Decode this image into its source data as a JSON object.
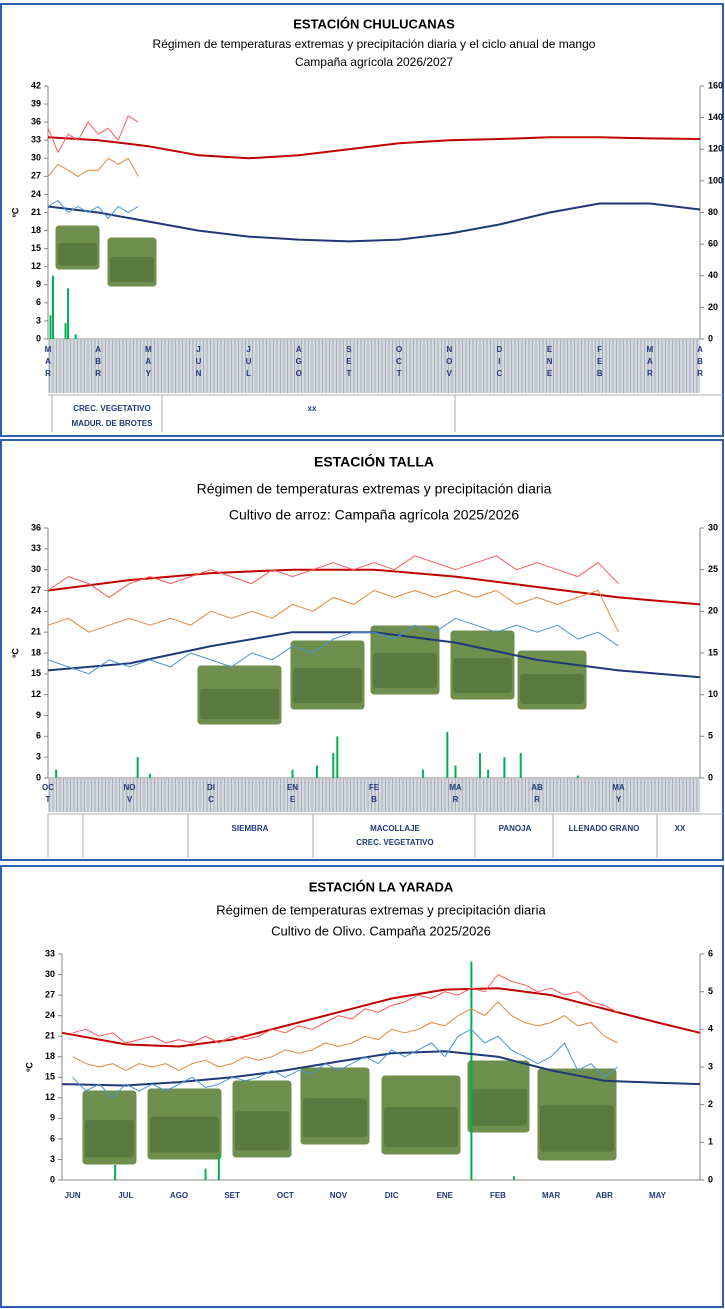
{
  "chart_data": [
    {
      "type": "line",
      "title": "ESTACIÓN CHULUCANAS",
      "subtitle": [
        "Régimen de temperaturas extremas y precipitación diaria y el ciclo anual de mango",
        "Campaña agrícola 2026/2027"
      ],
      "ylabel": "ºC",
      "categories": [
        "MAR",
        "ABR",
        "MAY",
        "JUN",
        "JUL",
        "AGO",
        "SET",
        "OCT",
        "NOV",
        "DIC",
        "ENE",
        "FEB",
        "MAR",
        "ABR"
      ],
      "xlim": [
        0,
        13
      ],
      "ylim": [
        0,
        42
      ],
      "yticks": [
        0,
        3,
        6,
        9,
        12,
        15,
        18,
        21,
        24,
        27,
        30,
        33,
        36,
        39,
        42
      ],
      "y2lim": [
        0,
        160
      ],
      "y2ticks": [
        0,
        20,
        40,
        60,
        80,
        100,
        120,
        140,
        160
      ],
      "phases": [
        "CREC. VEGETATIVO",
        "MADUR. DE BROTES",
        "xx"
      ],
      "series": [
        {
          "type": "line",
          "color": "#c00000",
          "width": 2,
          "x": [
            0,
            1,
            2,
            3,
            4,
            5,
            6,
            7,
            8,
            9,
            10,
            11,
            12,
            13
          ],
          "values": [
            33.5,
            33,
            32,
            30.5,
            30,
            30.5,
            31.5,
            32.5,
            33,
            33.2,
            33.5,
            33.5,
            33.3,
            33.2
          ]
        },
        {
          "type": "line",
          "color": "#1f3a78",
          "width": 2,
          "x": [
            0,
            1,
            2,
            3,
            4,
            5,
            6,
            7,
            8,
            9,
            10,
            11,
            12,
            13
          ],
          "values": [
            22,
            21,
            19.5,
            18,
            17,
            16.5,
            16.2,
            16.5,
            17.5,
            19,
            21,
            22.5,
            22.5,
            21.5
          ]
        },
        {
          "type": "line",
          "color": "#ff5a5a",
          "width": 1,
          "x": [
            0,
            0.2,
            0.4,
            0.6,
            0.8,
            1,
            1.2,
            1.4,
            1.6,
            1.8
          ],
          "values": [
            35,
            31,
            34,
            33,
            36,
            34,
            35,
            33,
            37,
            36
          ]
        },
        {
          "type": "line",
          "color": "#e08a3c",
          "width": 1,
          "x": [
            0,
            0.2,
            0.4,
            0.6,
            0.8,
            1,
            1.2,
            1.4,
            1.6,
            1.8
          ],
          "values": [
            27,
            29,
            28,
            27,
            28,
            28,
            30,
            29,
            30,
            27
          ]
        },
        {
          "type": "line",
          "color": "#4a95d8",
          "width": 1,
          "x": [
            0,
            0.2,
            0.4,
            0.6,
            0.8,
            1,
            1.2,
            1.4,
            1.6,
            1.8
          ],
          "values": [
            22,
            23,
            21,
            22,
            21,
            22,
            20,
            22,
            21,
            22
          ]
        },
        {
          "type": "bar",
          "axis": "y2",
          "color": "#00b050",
          "x": [
            0.05,
            0.1,
            0.35,
            0.4,
            0.55
          ],
          "values": [
            15,
            40,
            10,
            32,
            3
          ]
        }
      ]
    },
    {
      "type": "line",
      "title": "ESTACIÓN TALLA",
      "subtitle": [
        "Régimen de temperaturas extremas y precipitación diaria",
        "Cultivo de arroz: Campaña agrícola 2025/2026"
      ],
      "ylabel": "ºC",
      "categories": [
        "OCT",
        "NOV",
        "DIC",
        "ENE",
        "FEB",
        "MAR",
        "ABR",
        "MAY"
      ],
      "xlim": [
        0,
        8
      ],
      "ylim": [
        0,
        36
      ],
      "yticks": [
        0,
        3,
        6,
        9,
        12,
        15,
        18,
        21,
        24,
        27,
        30,
        33,
        36
      ],
      "y2lim": [
        0,
        30
      ],
      "y2ticks": [
        0,
        5,
        10,
        15,
        20,
        25,
        30
      ],
      "phases": [
        "SIEMBRA",
        "MACOLLAJE",
        "CREC. VEGETATIVO",
        "PANOJA",
        "LLENADO GRANO",
        "XX"
      ],
      "series": [
        {
          "type": "line",
          "color": "#c00000",
          "width": 2,
          "x": [
            0,
            1,
            2,
            3,
            4,
            5,
            6,
            7,
            8
          ],
          "values": [
            27,
            28.5,
            29.5,
            30,
            30,
            29,
            27.5,
            26,
            25
          ]
        },
        {
          "type": "line",
          "color": "#1f3a78",
          "width": 2,
          "x": [
            0,
            1,
            2,
            3,
            4,
            5,
            6,
            7,
            8
          ],
          "values": [
            15.5,
            16.5,
            19,
            21,
            21,
            19.5,
            17,
            15.5,
            14.5
          ]
        },
        {
          "type": "line",
          "color": "#ff5a5a",
          "width": 1,
          "x": [
            0,
            0.25,
            0.5,
            0.75,
            1,
            1.25,
            1.5,
            1.75,
            2,
            2.25,
            2.5,
            2.75,
            3,
            3.25,
            3.5,
            3.75,
            4,
            4.25,
            4.5,
            4.75,
            5,
            5.25,
            5.5,
            5.75,
            6,
            6.25,
            6.5,
            6.75,
            7
          ],
          "values": [
            27,
            29,
            28,
            26,
            28,
            29,
            28,
            29,
            30,
            29,
            28,
            30,
            29,
            30,
            31,
            30,
            31,
            30,
            32,
            31,
            30,
            31,
            32,
            30,
            31,
            30,
            29,
            31,
            28
          ]
        },
        {
          "type": "line",
          "color": "#e08a3c",
          "width": 1,
          "x": [
            0,
            0.25,
            0.5,
            0.75,
            1,
            1.25,
            1.5,
            1.75,
            2,
            2.25,
            2.5,
            2.75,
            3,
            3.25,
            3.5,
            3.75,
            4,
            4.25,
            4.5,
            4.75,
            5,
            5.25,
            5.5,
            5.75,
            6,
            6.25,
            6.5,
            6.75,
            7
          ],
          "values": [
            22,
            23,
            21,
            22,
            23,
            22,
            23,
            22,
            24,
            23,
            24,
            23,
            25,
            24,
            26,
            25,
            27,
            26,
            27,
            26,
            27,
            26,
            27,
            25,
            26,
            25,
            26,
            27,
            21
          ]
        },
        {
          "type": "line",
          "color": "#4a95d8",
          "width": 1,
          "x": [
            0,
            0.25,
            0.5,
            0.75,
            1,
            1.25,
            1.5,
            1.75,
            2,
            2.25,
            2.5,
            2.75,
            3,
            3.25,
            3.5,
            3.75,
            4,
            4.25,
            4.5,
            4.75,
            5,
            5.25,
            5.5,
            5.75,
            6,
            6.25,
            6.5,
            6.75,
            7
          ],
          "values": [
            17,
            16,
            15,
            17,
            16,
            17,
            16,
            18,
            17,
            16,
            18,
            17,
            19,
            18,
            20,
            21,
            21,
            20,
            22,
            21,
            23,
            22,
            21,
            22,
            21,
            22,
            20,
            21,
            19
          ]
        },
        {
          "type": "bar",
          "axis": "y2",
          "color": "#00b050",
          "x": [
            0.1,
            1.1,
            1.25,
            3.0,
            3.3,
            3.5,
            3.55,
            4.6,
            4.9,
            5.0,
            5.3,
            5.4,
            5.6,
            5.8,
            6.5
          ],
          "values": [
            1,
            2.5,
            0.5,
            1,
            1.5,
            3,
            5,
            1,
            5.5,
            1.5,
            3,
            1,
            2.5,
            3,
            0.3
          ]
        }
      ]
    },
    {
      "type": "line",
      "title": "ESTACIÓN LA YARADA",
      "subtitle": [
        "Régimen de temperaturas extremas y precipitación diaria",
        "Cultivo de Olivo. Campaña 2025/2026"
      ],
      "ylabel": "ºC",
      "categories": [
        "JUN",
        "JUL",
        "AGO",
        "SET",
        "OCT",
        "NOV",
        "DIC",
        "ENE",
        "FEB",
        "MAR",
        "ABR",
        "MAY"
      ],
      "xlim": [
        -0.2,
        11.8
      ],
      "ylim": [
        0,
        33
      ],
      "yticks": [
        0,
        3,
        6,
        9,
        12,
        15,
        18,
        21,
        24,
        27,
        30,
        33
      ],
      "y2lim": [
        0,
        6
      ],
      "y2ticks": [
        0,
        1,
        2,
        3,
        4,
        5,
        6
      ],
      "series": [
        {
          "type": "line",
          "color": "#c00000",
          "width": 2,
          "x": [
            -0.2,
            1,
            2,
            3,
            4,
            5,
            6,
            7,
            8,
            9,
            10,
            11,
            11.8
          ],
          "values": [
            21.5,
            19.8,
            19.5,
            20.5,
            22.5,
            24.5,
            26.5,
            27.8,
            28,
            27,
            25,
            23,
            21.5
          ]
        },
        {
          "type": "line",
          "color": "#1f3a78",
          "width": 2,
          "x": [
            -0.2,
            1,
            2,
            3,
            4,
            5,
            6,
            7,
            8,
            9,
            10,
            11,
            11.8
          ],
          "values": [
            14,
            13.8,
            14.3,
            15,
            16,
            17.3,
            18.5,
            18.8,
            18,
            16,
            14.5,
            14.2,
            14
          ]
        },
        {
          "type": "line",
          "color": "#ff5a5a",
          "width": 1,
          "x": [
            0,
            0.25,
            0.5,
            0.75,
            1,
            1.25,
            1.5,
            1.75,
            2,
            2.25,
            2.5,
            2.75,
            3,
            3.25,
            3.5,
            3.75,
            4,
            4.25,
            4.5,
            4.75,
            5,
            5.25,
            5.5,
            5.75,
            6,
            6.25,
            6.5,
            6.75,
            7,
            7.25,
            7.5,
            7.75,
            8,
            8.25,
            8.5,
            8.75,
            9,
            9.25,
            9.5,
            9.75,
            10,
            10.25
          ],
          "values": [
            21.5,
            22,
            21,
            21.5,
            20,
            20.5,
            21,
            20,
            20.5,
            20,
            21,
            20,
            21,
            20.5,
            21,
            22,
            21.5,
            22.5,
            22,
            23,
            24,
            23.5,
            25,
            24.5,
            25.5,
            26,
            27,
            26.5,
            27.5,
            27,
            28,
            27.5,
            30,
            29,
            28.5,
            27.5,
            28,
            27,
            27.5,
            26,
            25.5,
            24.5
          ]
        },
        {
          "type": "line",
          "color": "#e08a3c",
          "width": 1,
          "x": [
            0,
            0.25,
            0.5,
            0.75,
            1,
            1.25,
            1.5,
            1.75,
            2,
            2.25,
            2.5,
            2.75,
            3,
            3.25,
            3.5,
            3.75,
            4,
            4.25,
            4.5,
            4.75,
            5,
            5.25,
            5.5,
            5.75,
            6,
            6.25,
            6.5,
            6.75,
            7,
            7.25,
            7.5,
            7.75,
            8,
            8.25,
            8.5,
            8.75,
            9,
            9.25,
            9.5,
            9.75,
            10,
            10.25
          ],
          "values": [
            18,
            17,
            16.5,
            17,
            16,
            17,
            16.5,
            17,
            16,
            17,
            17.5,
            16.5,
            17,
            18,
            17.5,
            18,
            19,
            18.5,
            19,
            20,
            19.5,
            20,
            21,
            20.5,
            22,
            21.5,
            22,
            23,
            22.5,
            24,
            25,
            24,
            26,
            24,
            23,
            22.5,
            23,
            24,
            22.5,
            23,
            21,
            20
          ]
        },
        {
          "type": "line",
          "color": "#4a95d8",
          "width": 1,
          "x": [
            0,
            0.25,
            0.5,
            0.75,
            1,
            1.25,
            1.5,
            1.75,
            2,
            2.25,
            2.5,
            2.75,
            3,
            3.25,
            3.5,
            3.75,
            4,
            4.25,
            4.5,
            4.75,
            5,
            5.25,
            5.5,
            5.75,
            6,
            6.25,
            6.5,
            6.75,
            7,
            7.25,
            7.5,
            7.75,
            8,
            8.25,
            8.5,
            8.75,
            9,
            9.25,
            9.5,
            9.75,
            10,
            10.25
          ],
          "values": [
            15,
            13,
            14,
            12,
            14,
            13,
            14,
            13,
            14,
            15,
            13.5,
            14,
            15,
            14.5,
            15,
            16,
            15,
            16,
            15.5,
            17,
            16,
            17,
            18,
            17,
            19,
            18,
            19,
            20,
            18,
            21,
            22,
            20,
            21,
            19,
            18,
            17,
            18,
            20,
            16,
            17,
            15,
            16.5
          ]
        },
        {
          "type": "bar",
          "axis": "y2",
          "color": "#00b050",
          "x": [
            0.8,
            2.5,
            2.75,
            7.5,
            8.3
          ],
          "values": [
            0.4,
            0.3,
            0.7,
            5.8,
            0.1
          ]
        }
      ]
    }
  ]
}
